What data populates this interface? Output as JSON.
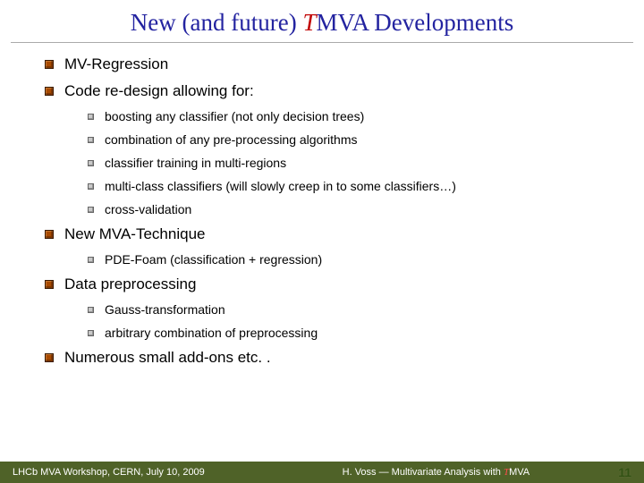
{
  "title": {
    "pre": "New (and future) ",
    "t": "T",
    "post": "MVA Developments",
    "color_main": "#2323a0",
    "color_t": "#c00000",
    "fontsize": 27
  },
  "bullets": {
    "main": [
      "MV-Regression",
      "Code re-design allowing for:",
      "New MVA-Technique",
      "Data preprocessing",
      "Numerous small add-ons etc. ."
    ],
    "redesign_subs": [
      "boosting any classifier (not only decision trees)",
      "combination of any pre-processing algorithms",
      "classifier training in multi-regions",
      "multi-class classifiers (will slowly creep in to some classifiers…)",
      "cross-validation"
    ],
    "newmva_subs": [
      "PDE-Foam (classification + regression)"
    ],
    "datapre_subs": [
      "Gauss-transformation",
      "arbitrary combination of preprocessing"
    ]
  },
  "style": {
    "main_bullet_color": "#a84a00",
    "sub_bullet_color": "#c9c9c9",
    "main_fontsize": 17,
    "sub_fontsize": 14,
    "background": "#ffffff"
  },
  "footer": {
    "left": "LHCb MVA Workshop, CERN, July 10, 2009",
    "center_pre": "H. Voss ― Multivariate Analysis with ",
    "center_t": "T",
    "center_post": "MVA",
    "page": "11",
    "bg": "#4f6228",
    "text_color": "#ffffff",
    "page_color": "#335214"
  }
}
